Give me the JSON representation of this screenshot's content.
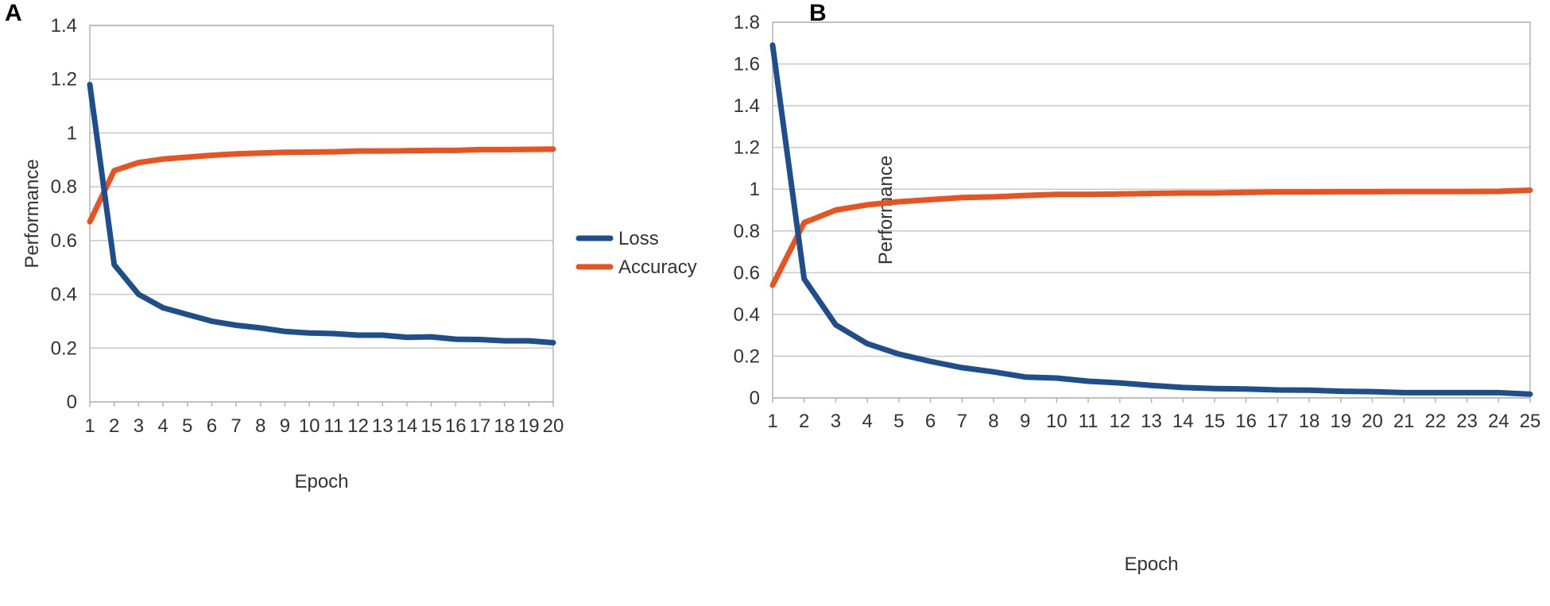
{
  "chart_data": [
    {
      "panel": "A",
      "type": "line",
      "title": "",
      "xlabel": "Epoch",
      "ylabel": "Performance",
      "x": [
        1,
        2,
        3,
        4,
        5,
        6,
        7,
        8,
        9,
        10,
        11,
        12,
        13,
        14,
        15,
        16,
        17,
        18,
        19,
        20
      ],
      "ylim": [
        0,
        1.4
      ],
      "yticks": [
        0,
        0.2,
        0.4,
        0.6,
        0.8,
        1,
        1.2,
        1.4
      ],
      "ytick_labels": [
        "0",
        "0.2",
        "0.4",
        "0.6",
        "0.8",
        "1",
        "1.2",
        "1.4"
      ],
      "grid": "horizontal",
      "legend": "right",
      "series": [
        {
          "name": "Loss",
          "color": "#1f4e8c",
          "values": [
            1.18,
            0.51,
            0.4,
            0.35,
            0.325,
            0.3,
            0.285,
            0.275,
            0.262,
            0.256,
            0.254,
            0.248,
            0.248,
            0.24,
            0.242,
            0.233,
            0.232,
            0.227,
            0.227,
            0.22
          ]
        },
        {
          "name": "Accuracy",
          "color": "#e8531f",
          "values": [
            0.67,
            0.86,
            0.89,
            0.903,
            0.91,
            0.917,
            0.922,
            0.925,
            0.928,
            0.929,
            0.93,
            0.933,
            0.933,
            0.934,
            0.935,
            0.935,
            0.938,
            0.938,
            0.939,
            0.94
          ]
        }
      ]
    },
    {
      "panel": "B",
      "type": "line",
      "title": "",
      "xlabel": "Epoch",
      "ylabel": "Performance",
      "x": [
        1,
        2,
        3,
        4,
        5,
        6,
        7,
        8,
        9,
        10,
        11,
        12,
        13,
        14,
        15,
        16,
        17,
        18,
        19,
        20,
        21,
        22,
        23,
        24,
        25
      ],
      "ylim": [
        0,
        1.8
      ],
      "yticks": [
        0,
        0.2,
        0.4,
        0.6,
        0.8,
        1,
        1.2,
        1.4,
        1.6,
        1.8
      ],
      "ytick_labels": [
        "0",
        "0.2",
        "0.4",
        "0.6",
        "0.8",
        "1",
        "1.2",
        "1.4",
        "1.6",
        "1.8"
      ],
      "grid": "horizontal",
      "legend": "none",
      "series": [
        {
          "name": "Loss",
          "color": "#1f4e8c",
          "values": [
            1.69,
            0.57,
            0.35,
            0.26,
            0.21,
            0.175,
            0.145,
            0.125,
            0.1,
            0.095,
            0.08,
            0.072,
            0.06,
            0.05,
            0.045,
            0.043,
            0.038,
            0.037,
            0.032,
            0.03,
            0.025,
            0.025,
            0.025,
            0.025,
            0.018
          ]
        },
        {
          "name": "Accuracy",
          "color": "#e8531f",
          "values": [
            0.54,
            0.84,
            0.9,
            0.925,
            0.94,
            0.95,
            0.96,
            0.963,
            0.97,
            0.975,
            0.975,
            0.977,
            0.98,
            0.982,
            0.982,
            0.985,
            0.987,
            0.987,
            0.988,
            0.988,
            0.989,
            0.989,
            0.989,
            0.99,
            0.995
          ]
        }
      ]
    }
  ],
  "legend": {
    "items": [
      {
        "label": "Loss",
        "color": "#1f4e8c"
      },
      {
        "label": "Accuracy",
        "color": "#e8531f"
      }
    ]
  }
}
